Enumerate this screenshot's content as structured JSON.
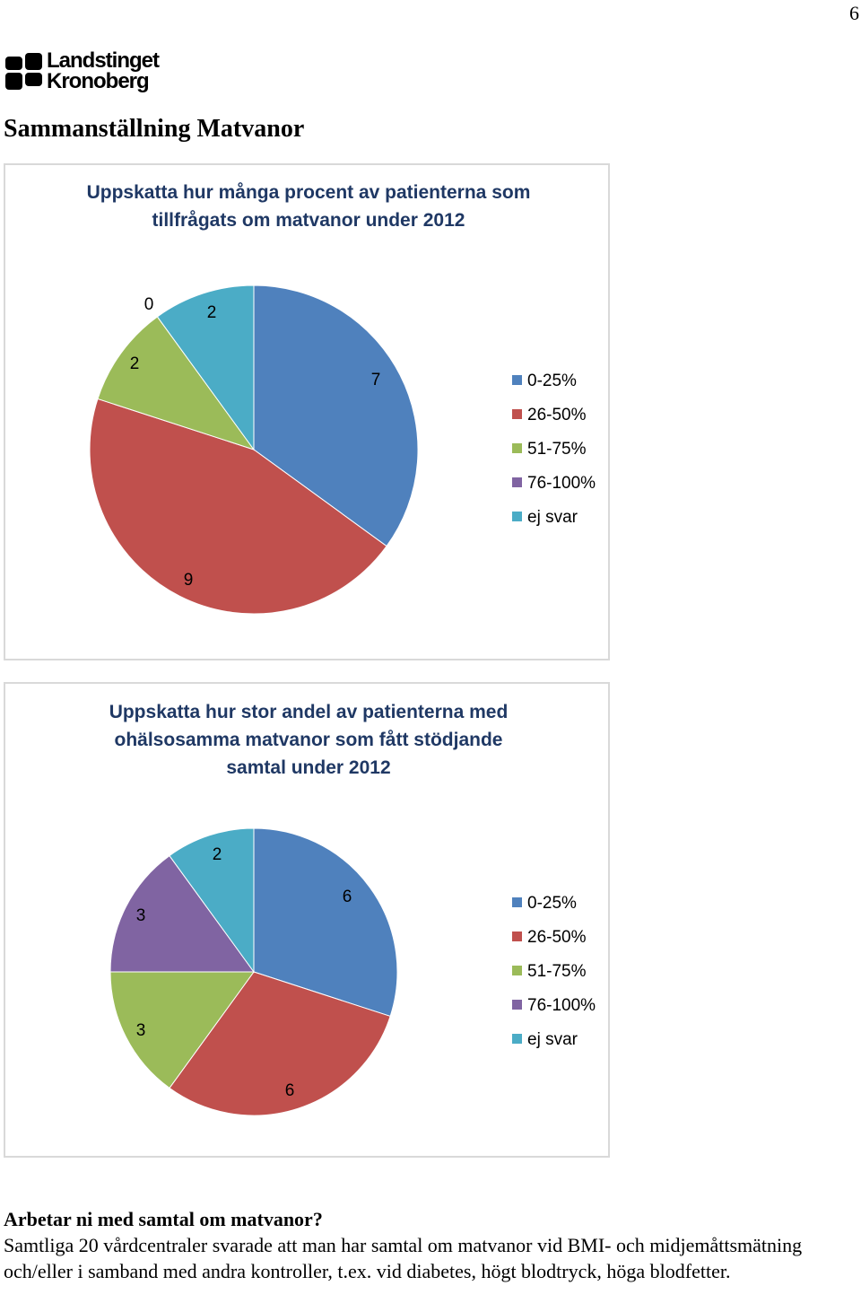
{
  "page": {
    "number": "6"
  },
  "logo": {
    "line1": "Landstinget",
    "line2": "Kronoberg",
    "color": "#000000"
  },
  "document": {
    "title": "Sammanställning Matvanor"
  },
  "colors": {
    "0-25%": "#4f81bd",
    "26-50%": "#c0504d",
    "51-75%": "#9bbb59",
    "76-100%": "#8064a2",
    "ej svar": "#4bacc6",
    "chart_border": "#d9d9d9",
    "title_text": "#1f3864"
  },
  "chart_data": [
    {
      "type": "pie",
      "title_lines": [
        "Uppskatta hur många procent av patienterna som",
        "tillfrågats om matvanor under 2012"
      ],
      "categories": [
        "0-25%",
        "26-50%",
        "51-75%",
        "76-100%",
        "ej svar"
      ],
      "values": [
        7,
        9,
        2,
        0,
        2
      ],
      "legend": [
        "0-25%",
        "26-50%",
        "51-75%",
        "76-100%",
        "ej svar"
      ],
      "legend_position": "right",
      "start": "top, clockwise"
    },
    {
      "type": "pie",
      "title_lines": [
        "Uppskatta hur stor andel av patienterna med",
        "ohälsosamma matvanor som fått stödjande",
        "samtal under 2012"
      ],
      "categories": [
        "0-25%",
        "26-50%",
        "51-75%",
        "76-100%",
        "ej svar"
      ],
      "values": [
        6,
        6,
        3,
        3,
        2
      ],
      "legend": [
        "0-25%",
        "26-50%",
        "51-75%",
        "76-100%",
        "ej svar"
      ],
      "legend_position": "right",
      "start": "top, clockwise"
    }
  ],
  "section": {
    "heading": "Arbetar ni med samtal om matvanor?",
    "text": "Samtliga 20 vårdcentraler svarade att man har samtal om matvanor vid BMI- och midjemåttsmätning och/eller i samband med andra kontroller, t.ex. vid diabetes, högt blodtryck, höga blodfetter."
  }
}
